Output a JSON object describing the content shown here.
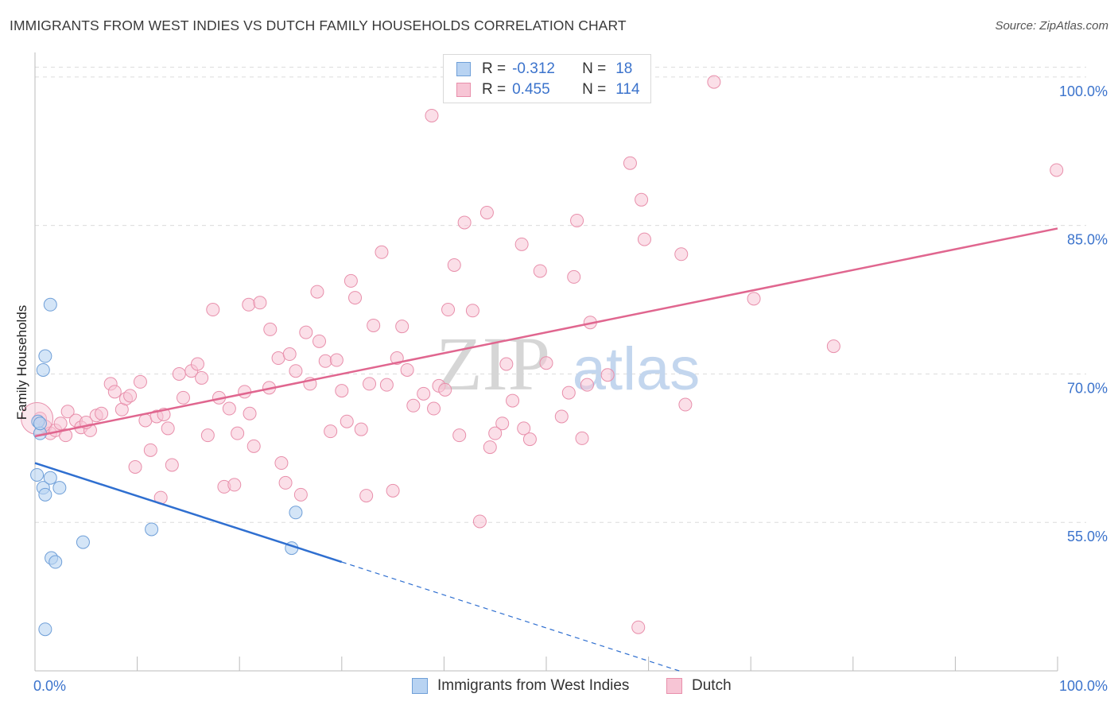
{
  "title": "IMMIGRANTS FROM WEST INDIES VS DUTCH FAMILY HOUSEHOLDS CORRELATION CHART",
  "source": "Source: ZipAtlas.com",
  "watermark": {
    "zip": "ZIP",
    "atlas": "atlas"
  },
  "legend_top": {
    "rows": [
      {
        "r_label": "R =",
        "r_value": "-0.312",
        "n_label": "N =",
        "n_value": "18"
      },
      {
        "r_label": "R =",
        "r_value": "0.455",
        "n_label": "N =",
        "n_value": "114"
      }
    ]
  },
  "colors": {
    "blue_fill": "#b8d3f2",
    "blue_stroke": "#6f9fd8",
    "blue_line": "#2f6fd0",
    "pink_fill": "#f7c5d5",
    "pink_stroke": "#e88fab",
    "pink_line": "#e0668f",
    "tick_text": "#3b73cc",
    "grid": "#dcdcdc"
  },
  "chart_data": {
    "type": "scatter",
    "title": "IMMIGRANTS FROM WEST INDIES VS DUTCH FAMILY HOUSEHOLDS CORRELATION CHART",
    "xlabel": "",
    "ylabel": "Family Households",
    "xlim": [
      0,
      100
    ],
    "ylim": [
      40,
      102
    ],
    "x_tick_labels": [
      "0.0%",
      "100.0%"
    ],
    "y_ticks": [
      55,
      70,
      85,
      100
    ],
    "y_tick_labels": [
      "55.0%",
      "70.0%",
      "85.0%",
      "100.0%"
    ],
    "grid": true,
    "legend_position": "top-center",
    "series": [
      {
        "name": "Immigrants from West Indies",
        "color": "#b8d3f2",
        "r": -0.312,
        "n": 18,
        "trend": {
          "x": [
            0,
            30
          ],
          "y": [
            61.0,
            51.0
          ],
          "dashed_to": [
            63,
            40.0
          ]
        },
        "points": [
          [
            0.3,
            65.2
          ],
          [
            0.5,
            64.0
          ],
          [
            0.8,
            58.5
          ],
          [
            1.0,
            71.8
          ],
          [
            0.8,
            70.4
          ],
          [
            1.5,
            77.0
          ],
          [
            1.5,
            59.5
          ],
          [
            1.0,
            57.8
          ],
          [
            2.4,
            58.5
          ],
          [
            1.6,
            51.4
          ],
          [
            2.0,
            51.0
          ],
          [
            4.7,
            53.0
          ],
          [
            11.4,
            54.3
          ],
          [
            25.1,
            52.4
          ],
          [
            25.5,
            56.0
          ],
          [
            1.0,
            44.2
          ],
          [
            0.2,
            59.8
          ],
          [
            0.5,
            65.0
          ]
        ]
      },
      {
        "name": "Dutch",
        "color": "#f7c5d5",
        "r": 0.455,
        "n": 114,
        "trend": {
          "x": [
            0,
            100
          ],
          "y": [
            63.7,
            84.7
          ]
        },
        "points": [
          [
            0.5,
            65.5
          ],
          [
            1.0,
            64.7
          ],
          [
            1.5,
            64.0
          ],
          [
            2.0,
            64.3
          ],
          [
            2.5,
            65.0
          ],
          [
            3.2,
            66.2
          ],
          [
            4.0,
            65.3
          ],
          [
            4.5,
            64.6
          ],
          [
            5.4,
            64.3
          ],
          [
            6.0,
            65.8
          ],
          [
            6.5,
            66.0
          ],
          [
            7.4,
            69.0
          ],
          [
            7.8,
            68.2
          ],
          [
            8.5,
            66.4
          ],
          [
            8.9,
            67.5
          ],
          [
            9.3,
            67.8
          ],
          [
            9.8,
            60.6
          ],
          [
            10.3,
            69.2
          ],
          [
            10.8,
            65.3
          ],
          [
            11.3,
            62.3
          ],
          [
            11.9,
            65.7
          ],
          [
            12.3,
            57.5
          ],
          [
            13.0,
            64.5
          ],
          [
            13.4,
            60.8
          ],
          [
            14.1,
            70.0
          ],
          [
            14.5,
            67.6
          ],
          [
            15.3,
            70.3
          ],
          [
            15.9,
            71.0
          ],
          [
            16.3,
            69.6
          ],
          [
            16.9,
            63.8
          ],
          [
            17.4,
            76.5
          ],
          [
            18.0,
            67.6
          ],
          [
            18.5,
            58.6
          ],
          [
            19.0,
            66.5
          ],
          [
            19.5,
            58.8
          ],
          [
            19.8,
            64.0
          ],
          [
            20.5,
            68.2
          ],
          [
            20.9,
            77.0
          ],
          [
            21.4,
            62.7
          ],
          [
            22.0,
            77.2
          ],
          [
            22.9,
            68.6
          ],
          [
            23.0,
            74.5
          ],
          [
            23.8,
            71.6
          ],
          [
            24.1,
            61.0
          ],
          [
            24.5,
            59.0
          ],
          [
            24.9,
            72.0
          ],
          [
            25.5,
            70.3
          ],
          [
            26.0,
            57.8
          ],
          [
            26.5,
            74.2
          ],
          [
            26.9,
            69.0
          ],
          [
            27.6,
            78.3
          ],
          [
            27.8,
            73.3
          ],
          [
            28.4,
            71.3
          ],
          [
            28.9,
            64.2
          ],
          [
            29.5,
            71.4
          ],
          [
            30.0,
            68.3
          ],
          [
            30.5,
            65.2
          ],
          [
            30.9,
            79.4
          ],
          [
            31.3,
            77.7
          ],
          [
            31.9,
            64.4
          ],
          [
            32.4,
            57.7
          ],
          [
            32.7,
            69.0
          ],
          [
            33.1,
            74.9
          ],
          [
            33.9,
            82.3
          ],
          [
            34.4,
            68.9
          ],
          [
            35.0,
            58.2
          ],
          [
            35.4,
            71.6
          ],
          [
            35.9,
            74.8
          ],
          [
            36.4,
            70.4
          ],
          [
            37.0,
            66.8
          ],
          [
            38.0,
            68.0
          ],
          [
            38.8,
            96.1
          ],
          [
            39.0,
            66.5
          ],
          [
            39.5,
            68.8
          ],
          [
            40.1,
            68.4
          ],
          [
            40.4,
            76.5
          ],
          [
            41.0,
            81.0
          ],
          [
            41.5,
            63.8
          ],
          [
            42.0,
            85.3
          ],
          [
            42.8,
            76.4
          ],
          [
            43.5,
            55.1
          ],
          [
            44.2,
            86.3
          ],
          [
            44.5,
            62.6
          ],
          [
            45.7,
            65.0
          ],
          [
            46.1,
            71.0
          ],
          [
            46.7,
            67.3
          ],
          [
            47.6,
            83.1
          ],
          [
            47.8,
            64.5
          ],
          [
            48.4,
            63.4
          ],
          [
            49.4,
            80.4
          ],
          [
            50.0,
            71.1
          ],
          [
            51.5,
            65.7
          ],
          [
            52.2,
            68.1
          ],
          [
            52.7,
            79.8
          ],
          [
            53.0,
            85.5
          ],
          [
            53.5,
            63.5
          ],
          [
            54.0,
            68.9
          ],
          [
            54.3,
            75.2
          ],
          [
            56.0,
            69.9
          ],
          [
            58.2,
            91.3
          ],
          [
            59.0,
            44.4
          ],
          [
            59.3,
            87.6
          ],
          [
            59.6,
            83.6
          ],
          [
            63.2,
            82.1
          ],
          [
            63.6,
            66.9
          ],
          [
            66.4,
            99.5
          ],
          [
            70.3,
            77.6
          ],
          [
            78.1,
            72.8
          ],
          [
            99.9,
            90.6
          ],
          [
            45.0,
            64.0
          ],
          [
            3.0,
            63.8
          ],
          [
            5.0,
            65.1
          ],
          [
            12.6,
            65.9
          ],
          [
            21.0,
            66.0
          ]
        ]
      }
    ]
  }
}
